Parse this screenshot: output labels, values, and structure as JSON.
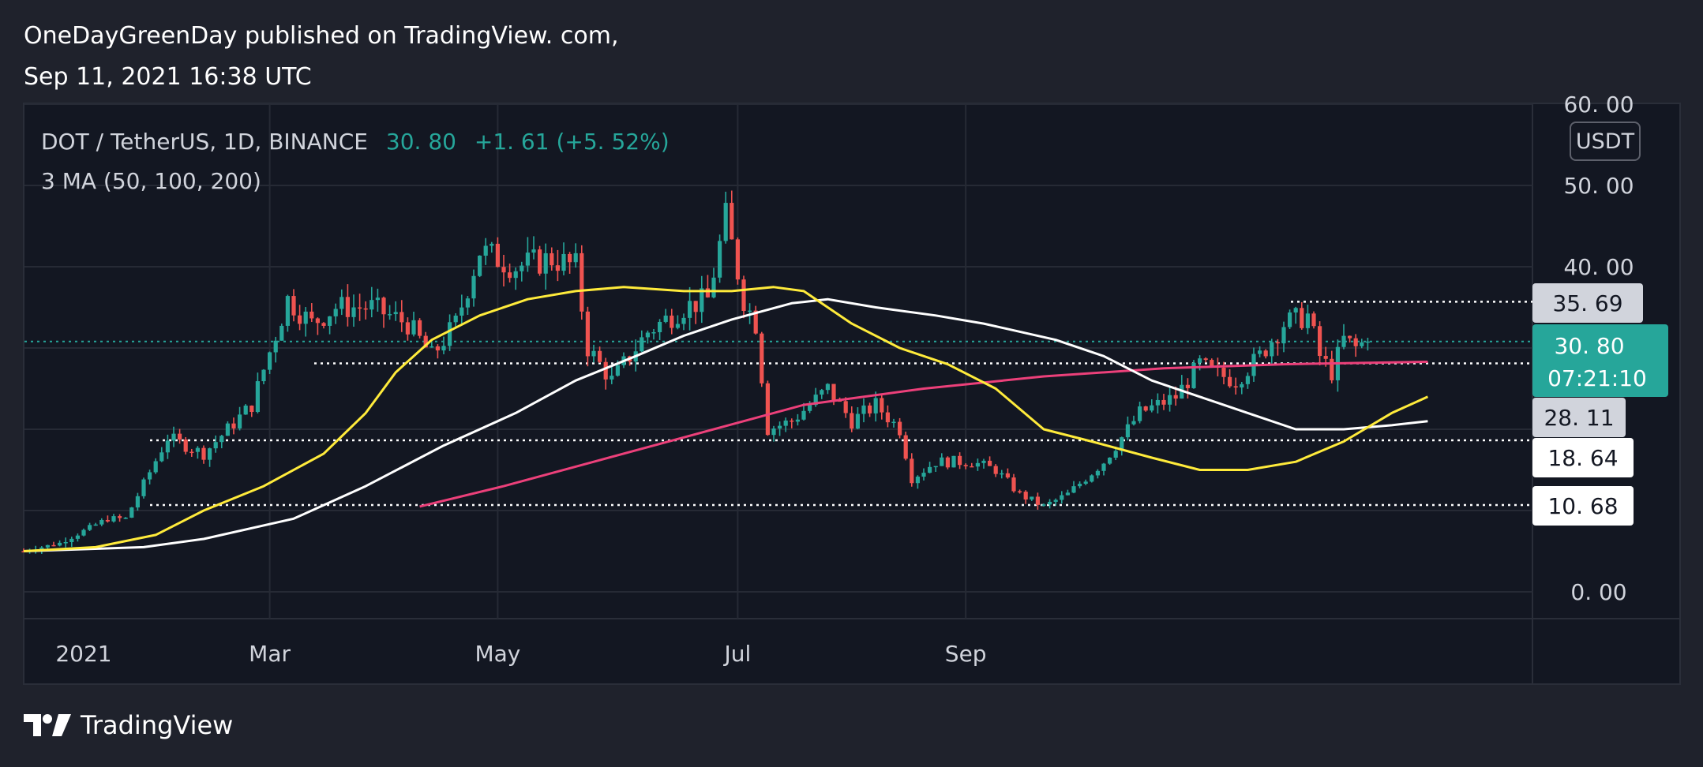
{
  "header": {
    "line1": "OneDayGreenDay published on TradingView. com,",
    "line2": "Sep 11,  2021 16:38 UTC"
  },
  "legend": {
    "symbol": "DOT / TetherUS,  1D,  BINANCE",
    "price": "30. 80",
    "change": "+1. 61 (+5. 52%)",
    "indicator": "3 MA (50,  100,  200)"
  },
  "currency_badge": "USDT",
  "brand": {
    "name": "TradingView",
    "icon": "tradingview-logo-icon"
  },
  "chart_data": {
    "type": "candlestick",
    "y_ticks": [
      "60. 00",
      "50. 00",
      "40. 00",
      "0. 00"
    ],
    "x_ticks": [
      "2021",
      "Mar",
      "May",
      "Jul",
      "Sep"
    ],
    "ylim": [
      0,
      60
    ],
    "grid": true,
    "colors": {
      "up": "#26a69a",
      "down": "#ef5350",
      "ma50": "#ffeb3b",
      "ma100": "#ffffff",
      "ma200": "#ec407a",
      "background": "#131722"
    },
    "horizontal_levels": [
      {
        "value": 35.69,
        "label": "35. 69",
        "style": "dotted",
        "color": "#ffffff"
      },
      {
        "value": 28.11,
        "label": "28. 11",
        "style": "dotted",
        "color": "#ffffff"
      },
      {
        "value": 18.64,
        "label": "18. 64",
        "style": "dotted",
        "color": "#ffffff"
      },
      {
        "value": 10.68,
        "label": "10. 68",
        "style": "dotted",
        "color": "#ffffff"
      }
    ],
    "last_price": {
      "value": 30.8,
      "label": "30. 80",
      "countdown": "07:21:10",
      "color": "#26a69a"
    },
    "ma50": [
      [
        0,
        5
      ],
      [
        12,
        5.5
      ],
      [
        22,
        7
      ],
      [
        30,
        10
      ],
      [
        40,
        13
      ],
      [
        50,
        17
      ],
      [
        57,
        22
      ],
      [
        62,
        27
      ],
      [
        68,
        31
      ],
      [
        76,
        34
      ],
      [
        84,
        36
      ],
      [
        92,
        37
      ],
      [
        100,
        37.5
      ],
      [
        110,
        37
      ],
      [
        118,
        37
      ],
      [
        125,
        37.5
      ],
      [
        130,
        37
      ],
      [
        138,
        33
      ],
      [
        146,
        30
      ],
      [
        154,
        28
      ],
      [
        162,
        25
      ],
      [
        170,
        20
      ],
      [
        178,
        18.5
      ],
      [
        188,
        16.5
      ],
      [
        196,
        15
      ],
      [
        204,
        15
      ],
      [
        212,
        16
      ],
      [
        220,
        18.5
      ],
      [
        228,
        22
      ],
      [
        234,
        24
      ]
    ],
    "ma100": [
      [
        0,
        5
      ],
      [
        20,
        5.5
      ],
      [
        30,
        6.5
      ],
      [
        45,
        9
      ],
      [
        57,
        13
      ],
      [
        70,
        18
      ],
      [
        82,
        22
      ],
      [
        92,
        26
      ],
      [
        102,
        29
      ],
      [
        110,
        31.5
      ],
      [
        118,
        33.5
      ],
      [
        128,
        35.5
      ],
      [
        134,
        36
      ],
      [
        142,
        35
      ],
      [
        152,
        34
      ],
      [
        160,
        33
      ],
      [
        172,
        31
      ],
      [
        180,
        29
      ],
      [
        188,
        26
      ],
      [
        196,
        24
      ],
      [
        204,
        22
      ],
      [
        212,
        20
      ],
      [
        220,
        20
      ],
      [
        228,
        20.5
      ],
      [
        234,
        21
      ]
    ],
    "ma200": [
      [
        66,
        10.5
      ],
      [
        80,
        13
      ],
      [
        95,
        16
      ],
      [
        110,
        19
      ],
      [
        130,
        23
      ],
      [
        150,
        25
      ],
      [
        170,
        26.5
      ],
      [
        190,
        27.5
      ],
      [
        210,
        28
      ],
      [
        234,
        28.3
      ]
    ]
  }
}
